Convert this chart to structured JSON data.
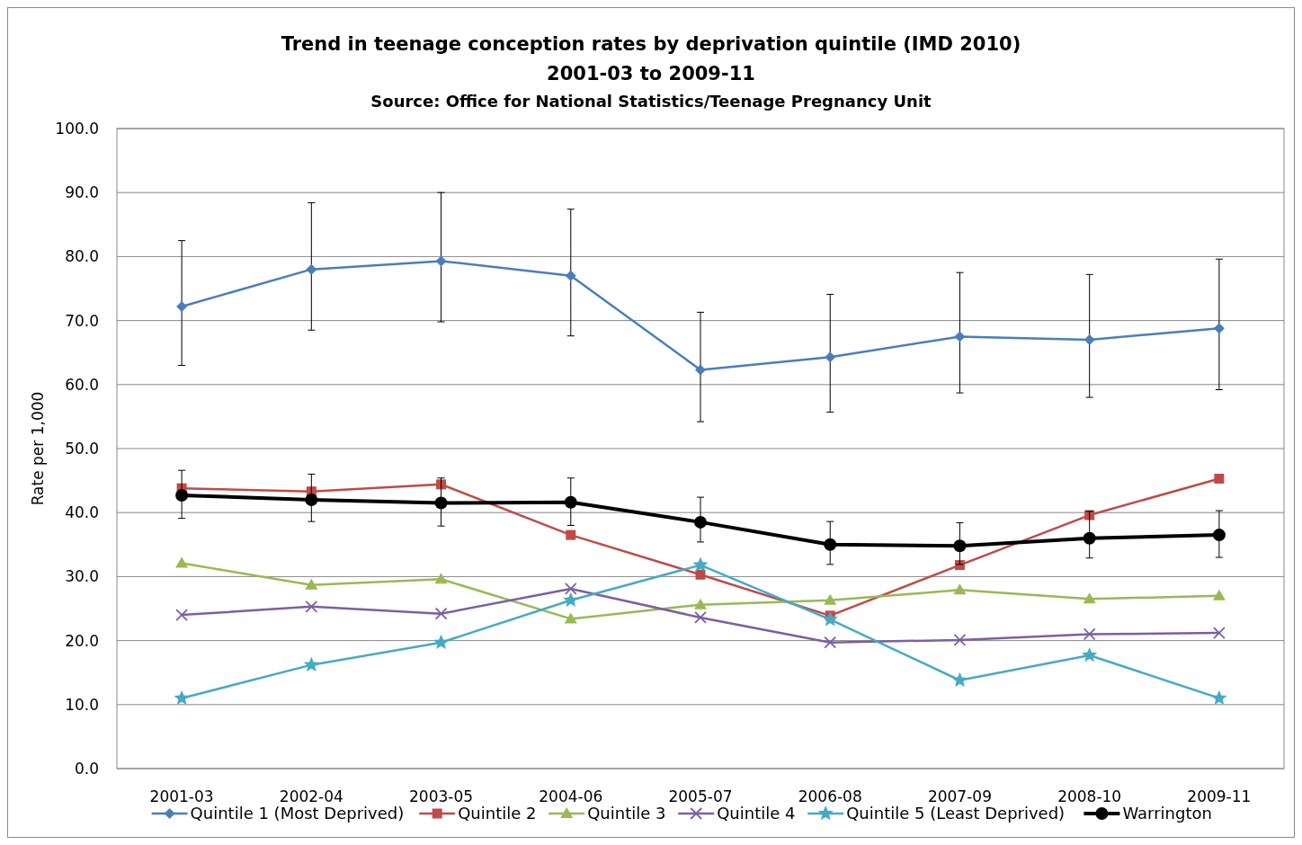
{
  "chart_data": {
    "type": "line",
    "title": "Trend in teenage conception rates by deprivation quintile (IMD 2010)",
    "subtitle": "2001-03 to 2009-11",
    "annotations": [
      "Source: Office for National Statistics/Teenage Pregnancy Unit"
    ],
    "ylabel": "Rate per 1,000",
    "categories": [
      "2001-03",
      "2002-04",
      "2003-05",
      "2004-06",
      "2005-07",
      "2006-08",
      "2007-09",
      "2008-10",
      "2009-11"
    ],
    "ylim": [
      0,
      100
    ],
    "yticks": [
      {
        "value": 0,
        "label": "0.0"
      },
      {
        "value": 10,
        "label": "10.0"
      },
      {
        "value": 20,
        "label": "20.0"
      },
      {
        "value": 30,
        "label": "30.0"
      },
      {
        "value": 40,
        "label": "40.0"
      },
      {
        "value": 50,
        "label": "50.0"
      },
      {
        "value": 60,
        "label": "60.0"
      },
      {
        "value": 70,
        "label": "70.0"
      },
      {
        "value": 80,
        "label": "80.0"
      },
      {
        "value": 90,
        "label": "90.0"
      },
      {
        "value": 100,
        "label": "100.0"
      }
    ],
    "grid": "y",
    "legend": "bottom",
    "line_style": "solid",
    "series": [
      {
        "name": "Quintile 1 (Most Deprived)",
        "color": "#4a7ebb",
        "marker": "diamond",
        "values": [
          72.2,
          78.0,
          79.3,
          77.0,
          62.3,
          64.3,
          67.5,
          67.0,
          68.8
        ],
        "errors": [
          [
            63.0,
            82.5
          ],
          [
            68.5,
            88.4
          ],
          [
            69.8,
            90.0
          ],
          [
            67.6,
            87.4
          ],
          [
            54.2,
            71.3
          ],
          [
            55.7,
            74.1
          ],
          [
            58.7,
            77.5
          ],
          [
            58.0,
            77.2
          ],
          [
            59.2,
            79.6
          ]
        ]
      },
      {
        "name": "Quintile 2",
        "color": "#be4b48",
        "marker": "square",
        "values": [
          43.8,
          43.3,
          44.4,
          36.5,
          30.3,
          23.9,
          31.8,
          39.6,
          45.3
        ]
      },
      {
        "name": "Quintile 3",
        "color": "#98b954",
        "marker": "triangle",
        "values": [
          32.1,
          28.7,
          29.6,
          23.4,
          25.6,
          26.3,
          27.9,
          26.5,
          27.0
        ]
      },
      {
        "name": "Quintile 4",
        "color": "#7d5fa0",
        "marker": "cross",
        "values": [
          24.0,
          25.3,
          24.2,
          28.1,
          23.6,
          19.7,
          20.1,
          21.0,
          21.2
        ]
      },
      {
        "name": "Quintile 5 (Least Deprived)",
        "color": "#46aac5",
        "marker": "star",
        "values": [
          11.0,
          16.2,
          19.7,
          26.3,
          31.8,
          23.3,
          13.8,
          17.7,
          11.0
        ]
      },
      {
        "name": "Warrington",
        "color": "#000000",
        "marker": "circle",
        "values": [
          42.7,
          42.0,
          41.5,
          41.6,
          38.5,
          35.0,
          34.8,
          36.0,
          36.5
        ],
        "errors": [
          [
            39.1,
            46.6
          ],
          [
            38.6,
            46.0
          ],
          [
            37.9,
            45.4
          ],
          [
            38.0,
            45.4
          ],
          [
            35.4,
            42.4
          ],
          [
            31.9,
            38.6
          ],
          [
            31.9,
            38.4
          ],
          [
            32.9,
            40.2
          ],
          [
            33.0,
            40.3
          ]
        ]
      }
    ]
  }
}
